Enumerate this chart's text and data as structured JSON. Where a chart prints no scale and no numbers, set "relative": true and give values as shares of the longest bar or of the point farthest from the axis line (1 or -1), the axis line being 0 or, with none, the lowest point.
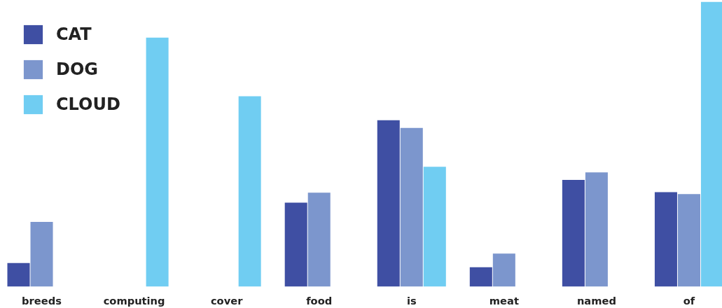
{
  "chart_data": {
    "type": "bar",
    "relative": true,
    "legend": "top left",
    "grid": false,
    "categories": [
      "breeds",
      "computing",
      "cover",
      "food",
      "is",
      "meat",
      "named",
      "of"
    ],
    "series": [
      {
        "name": "CAT",
        "color": "#3f4fa3",
        "values": [
          0.083,
          null,
          null,
          0.295,
          0.584,
          0.068,
          0.375,
          0.332
        ]
      },
      {
        "name": "DOG",
        "color": "#7c96cd",
        "values": [
          0.227,
          null,
          null,
          0.33,
          0.557,
          0.116,
          0.401,
          0.325
        ]
      },
      {
        "name": "CLOUD",
        "color": "#70cdf2",
        "values": [
          null,
          0.874,
          0.668,
          null,
          0.421,
          null,
          null,
          1
        ]
      }
    ]
  }
}
